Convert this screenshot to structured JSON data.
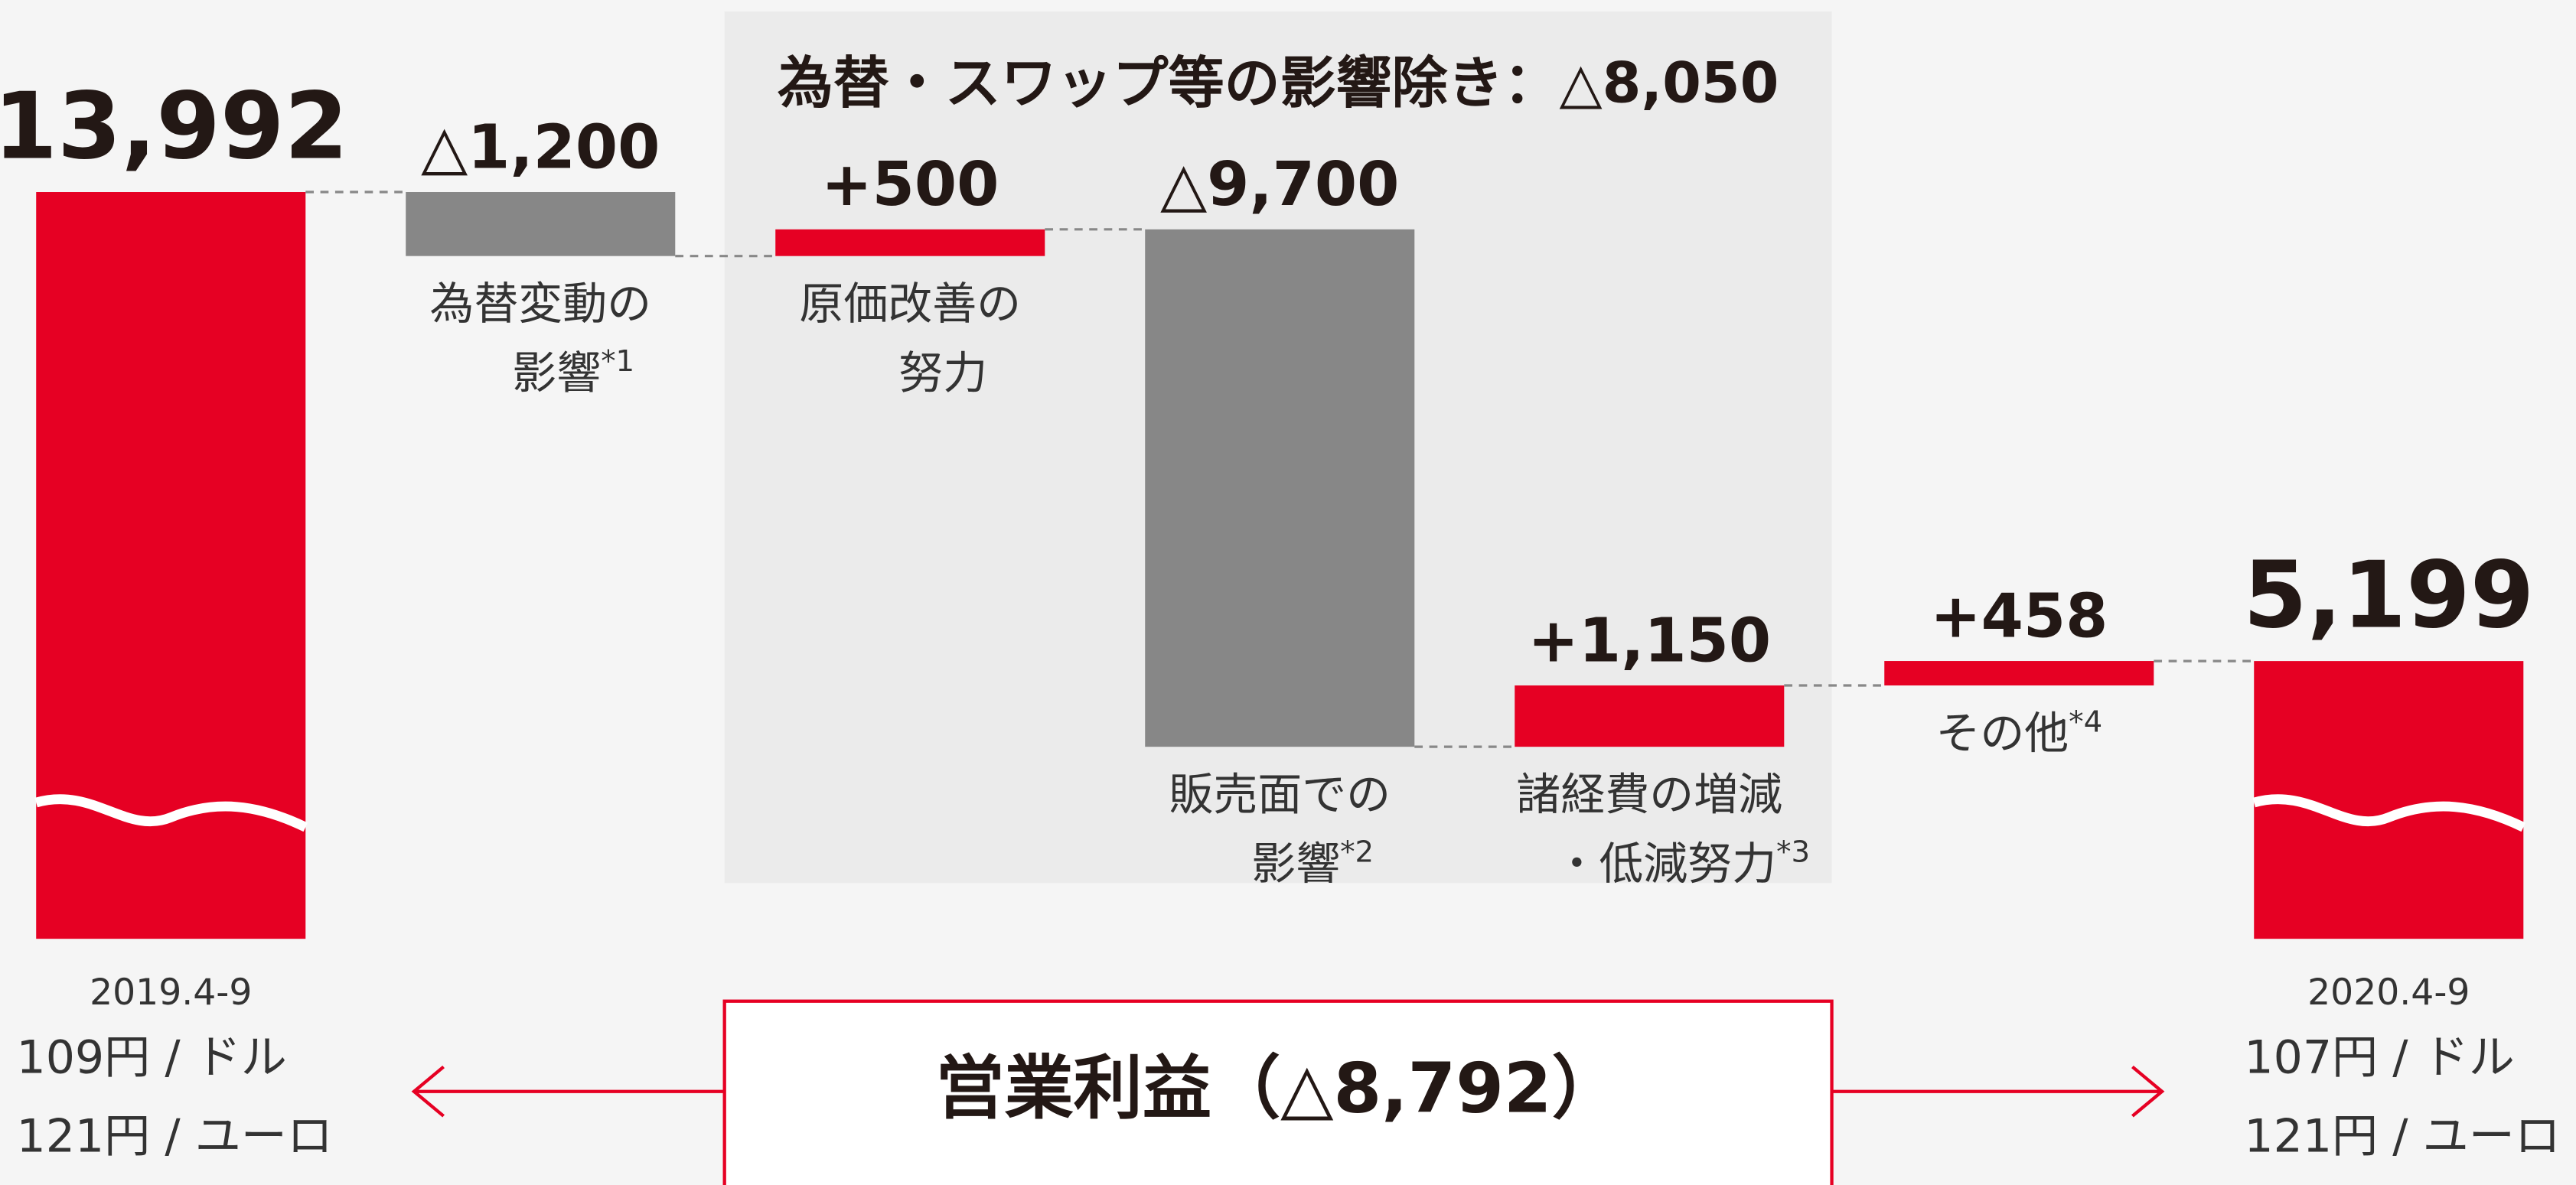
{
  "chart_data": {
    "type": "waterfall",
    "categories": [
      [
        "2019.4-9"
      ],
      [
        "為替変動の",
        "影響"
      ],
      [
        "原価改善の",
        "努力"
      ],
      [
        "販売面での",
        "影響"
      ],
      [
        "諸経費の増減",
        "・低減努力"
      ],
      [
        "その他"
      ],
      [
        "2020.4-9"
      ]
    ],
    "footnotes": [
      null,
      "*1",
      null,
      "*2",
      "*3",
      "*4",
      null
    ],
    "values": [
      13992,
      -1200,
      500,
      -9700,
      1150,
      458,
      5199
    ],
    "value_labels": [
      "13,992",
      "△1,200",
      "+500",
      "△9,700",
      "+1,150",
      "+458",
      "5,199"
    ],
    "rates": [
      [
        "109円 / ドル",
        "121円 / ユーロ"
      ],
      [
        "107円 / ドル",
        "121円 / ユーロ"
      ]
    ],
    "group_title": "為替・スワップ等の影響除き：△8,050",
    "net_label": "営業利益（△8,792）",
    "colors": {
      "total": "#e60023",
      "increase": "#e60023",
      "decrease": "#878787"
    }
  }
}
